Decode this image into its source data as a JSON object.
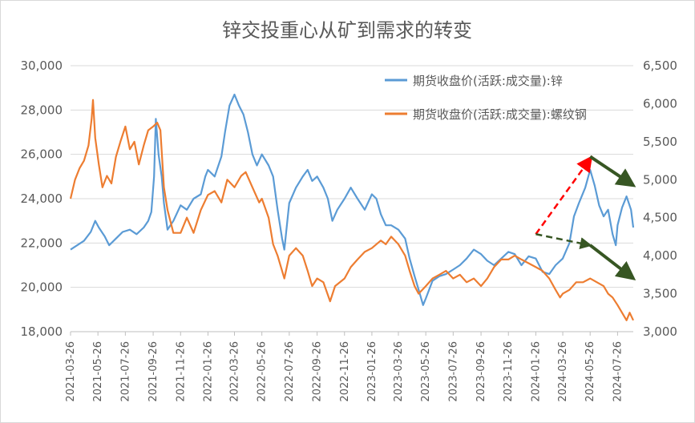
{
  "chart_data": {
    "type": "line",
    "title": "锌交投重心从矿到需求的转变",
    "legend_position": "top-right",
    "grid": true,
    "x_range": [
      "2021-03-26",
      "2024-08-30"
    ],
    "x_tick_labels": [
      "2021-03-26",
      "2021-05-26",
      "2021-07-26",
      "2021-09-26",
      "2021-11-26",
      "2022-01-26",
      "2022-03-26",
      "2022-05-26",
      "2022-07-26",
      "2022-09-26",
      "2022-11-26",
      "2023-01-26",
      "2023-03-26",
      "2023-05-26",
      "2023-07-26",
      "2023-09-26",
      "2023-11-26",
      "2024-01-26",
      "2024-03-26",
      "2024-05-26",
      "2024-07-26"
    ],
    "y_left": {
      "min": 18000,
      "max": 30000,
      "step": 2000,
      "tick_labels": [
        "18,000",
        "20,000",
        "22,000",
        "24,000",
        "26,000",
        "28,000",
        "30,000"
      ]
    },
    "y_right": {
      "min": 3000,
      "max": 6500,
      "step": 500,
      "tick_labels": [
        "3,000",
        "3,500",
        "4,000",
        "4,500",
        "5,000",
        "5,500",
        "6,000",
        "6,500"
      ]
    },
    "series": [
      {
        "name": "期货收盘价(活跃:成交量):锌",
        "axis": "left",
        "color": "#5b9bd5",
        "points": [
          [
            "2021-03-26",
            21700
          ],
          [
            "2021-04-10",
            21900
          ],
          [
            "2021-04-25",
            22100
          ],
          [
            "2021-05-10",
            22500
          ],
          [
            "2021-05-20",
            23000
          ],
          [
            "2021-05-28",
            22700
          ],
          [
            "2021-06-10",
            22300
          ],
          [
            "2021-06-20",
            21900
          ],
          [
            "2021-07-05",
            22200
          ],
          [
            "2021-07-20",
            22500
          ],
          [
            "2021-08-05",
            22600
          ],
          [
            "2021-08-20",
            22400
          ],
          [
            "2021-09-05",
            22700
          ],
          [
            "2021-09-15",
            23000
          ],
          [
            "2021-09-22",
            23400
          ],
          [
            "2021-09-28",
            25000
          ],
          [
            "2021-10-02",
            27600
          ],
          [
            "2021-10-08",
            26000
          ],
          [
            "2021-10-15",
            25000
          ],
          [
            "2021-10-20",
            23800
          ],
          [
            "2021-10-28",
            22600
          ],
          [
            "2021-11-10",
            23000
          ],
          [
            "2021-11-26",
            23700
          ],
          [
            "2021-12-10",
            23500
          ],
          [
            "2021-12-25",
            24000
          ],
          [
            "2022-01-10",
            24200
          ],
          [
            "2022-01-20",
            25000
          ],
          [
            "2022-01-26",
            25300
          ],
          [
            "2022-02-10",
            25000
          ],
          [
            "2022-02-25",
            25900
          ],
          [
            "2022-03-05",
            27000
          ],
          [
            "2022-03-15",
            28200
          ],
          [
            "2022-03-26",
            28700
          ],
          [
            "2022-04-05",
            28200
          ],
          [
            "2022-04-15",
            27800
          ],
          [
            "2022-04-25",
            27000
          ],
          [
            "2022-05-05",
            26000
          ],
          [
            "2022-05-15",
            25500
          ],
          [
            "2022-05-26",
            26000
          ],
          [
            "2022-06-10",
            25500
          ],
          [
            "2022-06-20",
            25000
          ],
          [
            "2022-06-30",
            23500
          ],
          [
            "2022-07-10",
            22200
          ],
          [
            "2022-07-15",
            21700
          ],
          [
            "2022-07-26",
            23800
          ],
          [
            "2022-08-10",
            24500
          ],
          [
            "2022-08-25",
            25000
          ],
          [
            "2022-09-05",
            25300
          ],
          [
            "2022-09-15",
            24800
          ],
          [
            "2022-09-26",
            25000
          ],
          [
            "2022-10-10",
            24500
          ],
          [
            "2022-10-20",
            24000
          ],
          [
            "2022-10-30",
            23000
          ],
          [
            "2022-11-10",
            23500
          ],
          [
            "2022-11-26",
            24000
          ],
          [
            "2022-12-10",
            24500
          ],
          [
            "2022-12-25",
            24000
          ],
          [
            "2023-01-10",
            23500
          ],
          [
            "2023-01-26",
            24200
          ],
          [
            "2023-02-05",
            24000
          ],
          [
            "2023-02-15",
            23300
          ],
          [
            "2023-02-26",
            22800
          ],
          [
            "2023-03-10",
            22800
          ],
          [
            "2023-03-26",
            22600
          ],
          [
            "2023-04-10",
            22200
          ],
          [
            "2023-04-20",
            21300
          ],
          [
            "2023-05-01",
            20500
          ],
          [
            "2023-05-10",
            19900
          ],
          [
            "2023-05-20",
            19200
          ],
          [
            "2023-05-26",
            19500
          ],
          [
            "2023-06-10",
            20300
          ],
          [
            "2023-06-25",
            20500
          ],
          [
            "2023-07-10",
            20600
          ],
          [
            "2023-07-26",
            20800
          ],
          [
            "2023-08-10",
            21000
          ],
          [
            "2023-08-25",
            21300
          ],
          [
            "2023-09-10",
            21700
          ],
          [
            "2023-09-26",
            21500
          ],
          [
            "2023-10-10",
            21200
          ],
          [
            "2023-10-25",
            21000
          ],
          [
            "2023-11-10",
            21300
          ],
          [
            "2023-11-26",
            21600
          ],
          [
            "2023-12-10",
            21500
          ],
          [
            "2023-12-25",
            21000
          ],
          [
            "2024-01-10",
            21400
          ],
          [
            "2024-01-26",
            21300
          ],
          [
            "2024-02-10",
            20700
          ],
          [
            "2024-02-25",
            20600
          ],
          [
            "2024-03-10",
            21000
          ],
          [
            "2024-03-26",
            21300
          ],
          [
            "2024-04-10",
            22000
          ],
          [
            "2024-04-20",
            23200
          ],
          [
            "2024-05-01",
            23800
          ],
          [
            "2024-05-15",
            24500
          ],
          [
            "2024-05-26",
            25300
          ],
          [
            "2024-06-05",
            24600
          ],
          [
            "2024-06-15",
            23700
          ],
          [
            "2024-06-25",
            23200
          ],
          [
            "2024-07-05",
            23500
          ],
          [
            "2024-07-15",
            22400
          ],
          [
            "2024-07-22",
            21900
          ],
          [
            "2024-07-26",
            22800
          ],
          [
            "2024-08-05",
            23600
          ],
          [
            "2024-08-15",
            24100
          ],
          [
            "2024-08-25",
            23500
          ],
          [
            "2024-08-30",
            22700
          ]
        ]
      },
      {
        "name": "期货收盘价(活跃:成交量):螺纹钢",
        "axis": "right",
        "color": "#ed7d31",
        "points": [
          [
            "2021-03-26",
            4750
          ],
          [
            "2021-04-05",
            5000
          ],
          [
            "2021-04-15",
            5150
          ],
          [
            "2021-04-25",
            5250
          ],
          [
            "2021-05-05",
            5450
          ],
          [
            "2021-05-12",
            5800
          ],
          [
            "2021-05-15",
            6050
          ],
          [
            "2021-05-20",
            5550
          ],
          [
            "2021-05-28",
            5200
          ],
          [
            "2021-06-05",
            4900
          ],
          [
            "2021-06-15",
            5050
          ],
          [
            "2021-06-25",
            4950
          ],
          [
            "2021-07-05",
            5300
          ],
          [
            "2021-07-15",
            5500
          ],
          [
            "2021-07-26",
            5700
          ],
          [
            "2021-08-05",
            5400
          ],
          [
            "2021-08-15",
            5500
          ],
          [
            "2021-08-25",
            5200
          ],
          [
            "2021-09-05",
            5450
          ],
          [
            "2021-09-15",
            5650
          ],
          [
            "2021-09-26",
            5700
          ],
          [
            "2021-10-05",
            5750
          ],
          [
            "2021-10-12",
            5650
          ],
          [
            "2021-10-20",
            4900
          ],
          [
            "2021-10-28",
            4600
          ],
          [
            "2021-11-10",
            4300
          ],
          [
            "2021-11-26",
            4300
          ],
          [
            "2021-12-10",
            4500
          ],
          [
            "2021-12-25",
            4300
          ],
          [
            "2022-01-10",
            4600
          ],
          [
            "2022-01-26",
            4800
          ],
          [
            "2022-02-10",
            4850
          ],
          [
            "2022-02-25",
            4700
          ],
          [
            "2022-03-10",
            5000
          ],
          [
            "2022-03-26",
            4900
          ],
          [
            "2022-04-10",
            5050
          ],
          [
            "2022-04-20",
            5100
          ],
          [
            "2022-05-05",
            4900
          ],
          [
            "2022-05-20",
            4700
          ],
          [
            "2022-05-26",
            4750
          ],
          [
            "2022-06-10",
            4500
          ],
          [
            "2022-06-20",
            4150
          ],
          [
            "2022-06-30",
            4000
          ],
          [
            "2022-07-10",
            3800
          ],
          [
            "2022-07-15",
            3700
          ],
          [
            "2022-07-26",
            4000
          ],
          [
            "2022-08-10",
            4100
          ],
          [
            "2022-08-25",
            4000
          ],
          [
            "2022-09-05",
            3800
          ],
          [
            "2022-09-15",
            3600
          ],
          [
            "2022-09-26",
            3700
          ],
          [
            "2022-10-10",
            3650
          ],
          [
            "2022-10-25",
            3400
          ],
          [
            "2022-11-05",
            3600
          ],
          [
            "2022-11-26",
            3700
          ],
          [
            "2022-12-10",
            3850
          ],
          [
            "2022-12-25",
            3950
          ],
          [
            "2023-01-10",
            4050
          ],
          [
            "2023-01-26",
            4100
          ],
          [
            "2023-02-05",
            4150
          ],
          [
            "2023-02-15",
            4200
          ],
          [
            "2023-02-26",
            4150
          ],
          [
            "2023-03-10",
            4250
          ],
          [
            "2023-03-26",
            4150
          ],
          [
            "2023-04-10",
            4000
          ],
          [
            "2023-04-20",
            3800
          ],
          [
            "2023-05-01",
            3600
          ],
          [
            "2023-05-10",
            3500
          ],
          [
            "2023-05-26",
            3600
          ],
          [
            "2023-06-10",
            3700
          ],
          [
            "2023-06-25",
            3750
          ],
          [
            "2023-07-10",
            3800
          ],
          [
            "2023-07-26",
            3700
          ],
          [
            "2023-08-10",
            3750
          ],
          [
            "2023-08-25",
            3650
          ],
          [
            "2023-09-10",
            3700
          ],
          [
            "2023-09-26",
            3600
          ],
          [
            "2023-10-10",
            3700
          ],
          [
            "2023-10-25",
            3850
          ],
          [
            "2023-11-10",
            3950
          ],
          [
            "2023-11-26",
            3950
          ],
          [
            "2023-12-10",
            4000
          ],
          [
            "2023-12-25",
            3950
          ],
          [
            "2024-01-10",
            3900
          ],
          [
            "2024-01-26",
            3850
          ],
          [
            "2024-02-10",
            3800
          ],
          [
            "2024-02-25",
            3700
          ],
          [
            "2024-03-10",
            3550
          ],
          [
            "2024-03-20",
            3450
          ],
          [
            "2024-03-26",
            3500
          ],
          [
            "2024-04-10",
            3550
          ],
          [
            "2024-04-25",
            3650
          ],
          [
            "2024-05-10",
            3650
          ],
          [
            "2024-05-26",
            3700
          ],
          [
            "2024-06-10",
            3650
          ],
          [
            "2024-06-25",
            3600
          ],
          [
            "2024-07-05",
            3500
          ],
          [
            "2024-07-15",
            3450
          ],
          [
            "2024-07-26",
            3350
          ],
          [
            "2024-08-05",
            3250
          ],
          [
            "2024-08-15",
            3150
          ],
          [
            "2024-08-22",
            3250
          ],
          [
            "2024-08-30",
            3150
          ]
        ]
      }
    ],
    "annotations": [
      {
        "kind": "dashed-arrow",
        "color": "#ff0000",
        "from": [
          "2024-01-26",
          22400
        ],
        "to": [
          "2024-05-26",
          25800
        ],
        "axis": "left"
      },
      {
        "kind": "dashed-arrow",
        "color": "#375623",
        "from": [
          "2024-01-26",
          22400
        ],
        "to": [
          "2024-05-26",
          21900
        ],
        "axis": "left"
      },
      {
        "kind": "solid-arrow",
        "color": "#375623",
        "from": [
          "2024-05-26",
          25900
        ],
        "to": [
          "2024-08-30",
          24600
        ],
        "axis": "left"
      },
      {
        "kind": "solid-arrow",
        "color": "#375623",
        "from": [
          "2024-05-26",
          21900
        ],
        "to": [
          "2024-08-30",
          20400
        ],
        "axis": "left"
      }
    ]
  }
}
